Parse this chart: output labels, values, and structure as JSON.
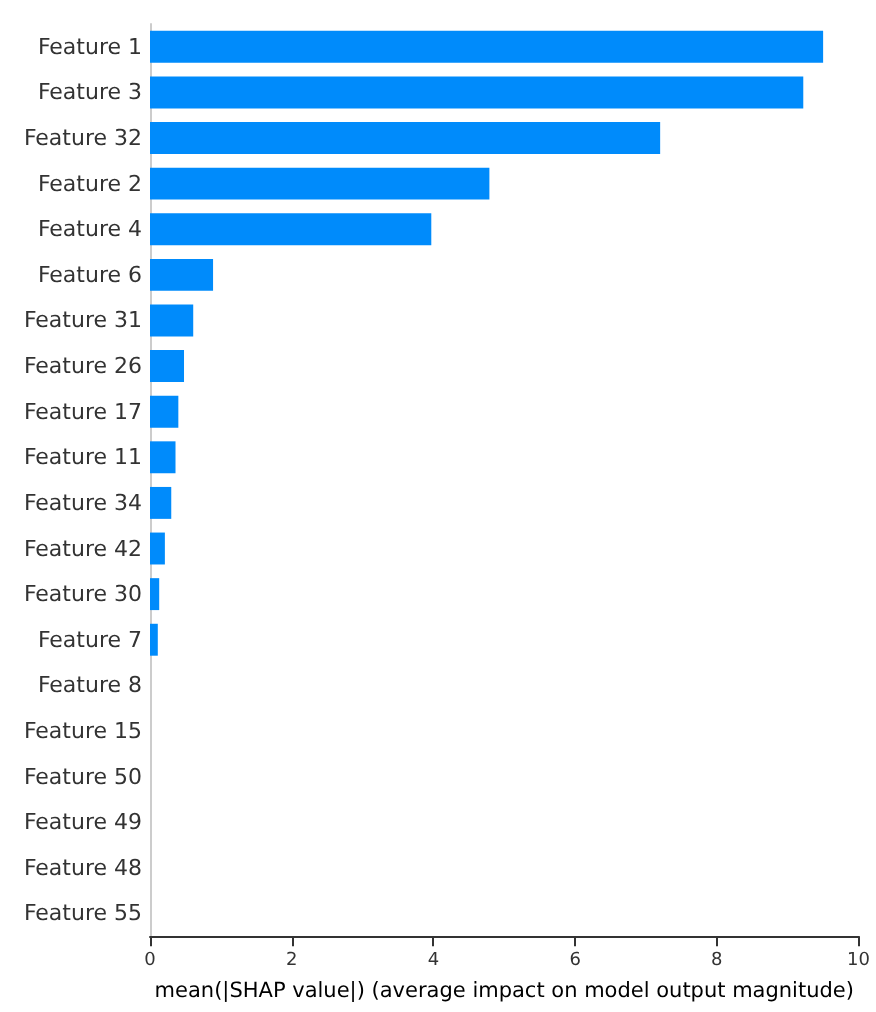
{
  "chart_data": {
    "type": "bar",
    "orientation": "horizontal",
    "xlabel": "mean(|SHAP value|) (average impact on model output magnitude)",
    "categories": [
      "Feature 1",
      "Feature 3",
      "Feature 32",
      "Feature 2",
      "Feature 4",
      "Feature 6",
      "Feature 31",
      "Feature 26",
      "Feature 17",
      "Feature 11",
      "Feature 34",
      "Feature 42",
      "Feature 30",
      "Feature 7",
      "Feature 8",
      "Feature 15",
      "Feature 50",
      "Feature 49",
      "Feature 48",
      "Feature 55"
    ],
    "values": [
      9.5,
      9.22,
      7.2,
      4.79,
      3.97,
      0.89,
      0.61,
      0.48,
      0.4,
      0.36,
      0.3,
      0.21,
      0.13,
      0.11,
      0,
      0,
      0,
      0,
      0,
      0
    ],
    "color": "#008bfb",
    "xlim": [
      0,
      10
    ],
    "xticks": [
      0,
      2,
      4,
      6,
      8,
      10
    ],
    "grid": false
  }
}
